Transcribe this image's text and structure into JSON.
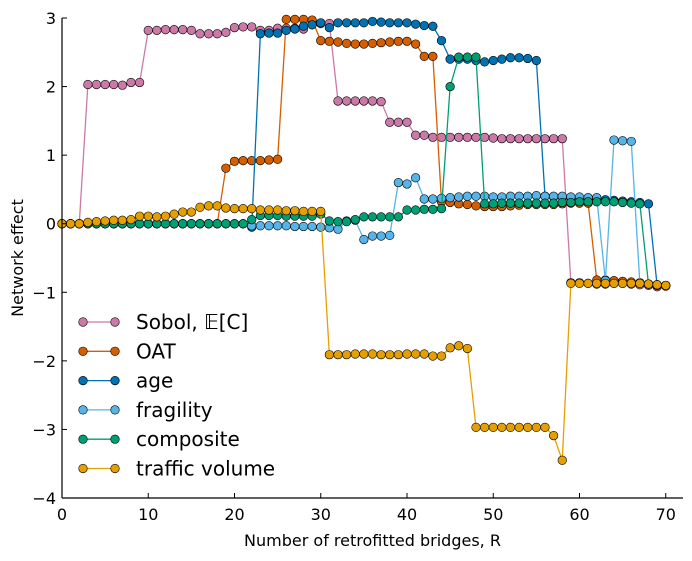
{
  "chart_data": {
    "type": "line",
    "xlabel": "Number of retrofitted bridges, R",
    "ylabel": "Network effect",
    "xlim": [
      0,
      72
    ],
    "ylim": [
      -4,
      3
    ],
    "xticks": [
      0,
      10,
      20,
      30,
      40,
      50,
      60,
      70
    ],
    "yticks": [
      -4,
      -3,
      -2,
      -1,
      0,
      1,
      2,
      3
    ],
    "xtick_labels": [
      "0",
      "10",
      "20",
      "30",
      "40",
      "50",
      "60",
      "70"
    ],
    "ytick_labels": [
      "−4",
      "−3",
      "−2",
      "−1",
      "0",
      "1",
      "2",
      "3"
    ],
    "grid": false,
    "legend_position": "lower-left",
    "series": [
      {
        "name": "Sobol, 𝔼[C]",
        "color": "#cc79a7",
        "x": [
          0,
          1,
          2,
          3,
          4,
          5,
          6,
          7,
          8,
          9,
          10,
          11,
          12,
          13,
          14,
          15,
          16,
          17,
          18,
          19,
          20,
          21,
          22,
          23,
          24,
          25,
          26,
          27,
          28,
          29,
          30,
          31,
          32,
          33,
          34,
          35,
          36,
          37,
          38,
          39,
          40,
          41,
          42,
          43,
          44,
          45,
          46,
          47,
          48,
          49,
          50,
          51,
          52,
          53,
          54,
          55,
          56,
          57,
          58,
          59,
          60,
          61,
          62,
          63,
          64,
          65,
          66,
          67,
          68,
          69,
          70
        ],
        "y": [
          0,
          0,
          0,
          2.03,
          2.03,
          2.03,
          2.03,
          2.02,
          2.06,
          2.06,
          2.82,
          2.82,
          2.83,
          2.83,
          2.83,
          2.82,
          2.77,
          2.77,
          2.77,
          2.79,
          2.86,
          2.87,
          2.87,
          2.82,
          2.82,
          2.85,
          2.85,
          2.85,
          2.84,
          2.93,
          2.92,
          2.92,
          1.79,
          1.79,
          1.79,
          1.79,
          1.79,
          1.78,
          1.48,
          1.48,
          1.48,
          1.29,
          1.29,
          1.26,
          1.26,
          1.26,
          1.26,
          1.26,
          1.26,
          1.26,
          1.25,
          1.24,
          1.24,
          1.24,
          1.24,
          1.24,
          1.24,
          1.24,
          1.24,
          -0.86,
          -0.86,
          -0.87,
          -0.88,
          -0.88,
          -0.87,
          -0.87,
          -0.88,
          -0.89,
          -0.9,
          -0.92,
          -0.91
        ]
      },
      {
        "name": "OAT",
        "color": "#d55e00",
        "x": [
          0,
          1,
          2,
          3,
          4,
          5,
          6,
          7,
          8,
          9,
          10,
          11,
          12,
          13,
          14,
          15,
          16,
          17,
          18,
          19,
          20,
          21,
          22,
          23,
          24,
          25,
          26,
          27,
          28,
          29,
          30,
          31,
          32,
          33,
          34,
          35,
          36,
          37,
          38,
          39,
          40,
          41,
          42,
          43,
          44,
          45,
          46,
          47,
          48,
          49,
          50,
          51,
          52,
          53,
          54,
          55,
          56,
          57,
          58,
          59,
          60,
          61,
          62,
          63,
          64,
          65,
          66,
          67,
          68,
          69,
          70
        ],
        "y": [
          0,
          0,
          0,
          0,
          0,
          0,
          0,
          0,
          0,
          0,
          0,
          0,
          0,
          0,
          0,
          0,
          0,
          0,
          0,
          0.81,
          0.91,
          0.92,
          0.92,
          0.92,
          0.93,
          0.94,
          2.98,
          2.98,
          2.98,
          2.97,
          2.67,
          2.66,
          2.65,
          2.63,
          2.62,
          2.62,
          2.63,
          2.64,
          2.65,
          2.66,
          2.66,
          2.62,
          2.44,
          2.44,
          0.32,
          0.31,
          0.29,
          0.28,
          0.26,
          0.25,
          0.25,
          0.25,
          0.26,
          0.27,
          0.28,
          0.28,
          0.28,
          0.28,
          0.29,
          0.3,
          0.3,
          0.3,
          -0.82,
          -0.82,
          -0.83,
          -0.84,
          -0.85,
          -0.86,
          -0.88,
          -0.9,
          -0.9
        ]
      },
      {
        "name": "age",
        "color": "#0072b2",
        "x": [
          0,
          1,
          2,
          3,
          4,
          5,
          6,
          7,
          8,
          9,
          10,
          11,
          12,
          13,
          14,
          15,
          16,
          17,
          18,
          19,
          20,
          21,
          22,
          23,
          24,
          25,
          26,
          27,
          28,
          29,
          30,
          31,
          32,
          33,
          34,
          35,
          36,
          37,
          38,
          39,
          40,
          41,
          42,
          43,
          44,
          45,
          46,
          47,
          48,
          49,
          50,
          51,
          52,
          53,
          54,
          55,
          56,
          57,
          58,
          59,
          60,
          61,
          62,
          63,
          64,
          65,
          66,
          67,
          68,
          69,
          70
        ],
        "y": [
          0,
          0,
          0,
          0,
          0,
          0,
          0,
          0,
          0,
          0,
          0,
          0,
          0,
          0,
          0,
          0,
          0,
          0,
          0,
          0,
          0,
          0,
          -0.05,
          2.77,
          2.78,
          2.78,
          2.82,
          2.84,
          2.88,
          2.9,
          2.93,
          2.86,
          2.93,
          2.93,
          2.93,
          2.93,
          2.95,
          2.94,
          2.93,
          2.93,
          2.93,
          2.91,
          2.89,
          2.88,
          2.67,
          2.4,
          2.4,
          2.4,
          2.38,
          2.36,
          2.38,
          2.4,
          2.42,
          2.42,
          2.41,
          2.38,
          0.4,
          0.39,
          0.39,
          0.38,
          0.38,
          0.37,
          0.36,
          0.35,
          0.34,
          0.33,
          0.32,
          0.31,
          0.29,
          -0.9,
          -0.9
        ]
      },
      {
        "name": "fragility",
        "color": "#56b4e9",
        "x": [
          0,
          1,
          2,
          3,
          4,
          5,
          6,
          7,
          8,
          9,
          10,
          11,
          12,
          13,
          14,
          15,
          16,
          17,
          18,
          19,
          20,
          21,
          22,
          23,
          24,
          25,
          26,
          27,
          28,
          29,
          30,
          31,
          32,
          33,
          34,
          35,
          36,
          37,
          38,
          39,
          40,
          41,
          42,
          43,
          44,
          45,
          46,
          47,
          48,
          49,
          50,
          51,
          52,
          53,
          54,
          55,
          56,
          57,
          58,
          59,
          60,
          61,
          62,
          63,
          64,
          65,
          66,
          67,
          68,
          69,
          70
        ],
        "y": [
          0,
          0,
          0,
          0,
          0,
          0,
          0,
          0,
          0,
          0,
          0,
          0,
          0,
          0,
          0,
          0,
          0,
          0,
          0,
          0,
          0,
          0,
          -0.03,
          -0.03,
          -0.03,
          -0.03,
          -0.03,
          -0.04,
          -0.04,
          -0.04,
          -0.05,
          -0.06,
          -0.08,
          0.04,
          0.05,
          -0.23,
          -0.18,
          -0.18,
          -0.17,
          0.6,
          0.58,
          0.67,
          0.36,
          0.36,
          0.37,
          0.38,
          0.39,
          0.4,
          0.4,
          0.4,
          0.39,
          0.39,
          0.4,
          0.4,
          0.4,
          0.41,
          0.4,
          0.4,
          0.4,
          0.39,
          0.39,
          0.38,
          0.38,
          -0.83,
          1.22,
          1.21,
          1.2,
          -0.87,
          -0.88,
          -0.89,
          -0.9
        ]
      },
      {
        "name": "composite",
        "color": "#009e73",
        "x": [
          0,
          1,
          2,
          3,
          4,
          5,
          6,
          7,
          8,
          9,
          10,
          11,
          12,
          13,
          14,
          15,
          16,
          17,
          18,
          19,
          20,
          21,
          22,
          23,
          24,
          25,
          26,
          27,
          28,
          29,
          30,
          31,
          32,
          33,
          34,
          35,
          36,
          37,
          38,
          39,
          40,
          41,
          42,
          43,
          44,
          45,
          46,
          47,
          48,
          49,
          50,
          51,
          52,
          53,
          54,
          55,
          56,
          57,
          58,
          59,
          60,
          61,
          62,
          63,
          64,
          65,
          66,
          67,
          68,
          69,
          70
        ],
        "y": [
          0,
          0,
          0,
          0,
          0,
          0,
          0,
          0,
          0,
          0,
          0,
          0,
          0,
          0,
          0,
          0,
          0,
          0,
          0,
          0,
          0,
          0,
          0.06,
          0.12,
          0.12,
          0.12,
          0.11,
          0.11,
          0.11,
          0.11,
          0.14,
          0.04,
          0.03,
          0.03,
          0.06,
          0.1,
          0.1,
          0.1,
          0.1,
          0.1,
          0.2,
          0.2,
          0.21,
          0.21,
          0.22,
          2.0,
          2.43,
          2.43,
          2.43,
          0.29,
          0.29,
          0.3,
          0.3,
          0.3,
          0.3,
          0.3,
          0.3,
          0.3,
          0.31,
          0.31,
          0.32,
          0.32,
          0.32,
          0.32,
          0.32,
          0.31,
          0.3,
          0.29,
          -0.88,
          -0.89,
          -0.9
        ]
      },
      {
        "name": "traffic volume",
        "color": "#e69f00",
        "x": [
          0,
          1,
          2,
          3,
          4,
          5,
          6,
          7,
          8,
          9,
          10,
          11,
          12,
          13,
          14,
          15,
          16,
          17,
          18,
          19,
          20,
          21,
          22,
          23,
          24,
          25,
          26,
          27,
          28,
          29,
          30,
          31,
          32,
          33,
          34,
          35,
          36,
          37,
          38,
          39,
          40,
          41,
          42,
          43,
          44,
          45,
          46,
          47,
          48,
          49,
          50,
          51,
          52,
          53,
          54,
          55,
          56,
          57,
          58,
          59,
          60,
          61,
          62,
          63,
          64,
          65,
          66,
          67,
          68,
          69,
          70
        ],
        "y": [
          0,
          0,
          0,
          0.02,
          0.03,
          0.04,
          0.05,
          0.05,
          0.06,
          0.11,
          0.11,
          0.1,
          0.11,
          0.14,
          0.17,
          0.17,
          0.24,
          0.26,
          0.26,
          0.23,
          0.22,
          0.22,
          0.22,
          0.2,
          0.2,
          0.2,
          0.19,
          0.19,
          0.18,
          0.18,
          0.18,
          -1.91,
          -1.91,
          -1.91,
          -1.9,
          -1.9,
          -1.9,
          -1.91,
          -1.91,
          -1.91,
          -1.9,
          -1.9,
          -1.9,
          -1.93,
          -1.93,
          -1.81,
          -1.78,
          -1.82,
          -2.97,
          -2.97,
          -2.97,
          -2.97,
          -2.97,
          -2.97,
          -2.97,
          -2.97,
          -2.97,
          -3.09,
          -3.45,
          -0.87,
          -0.87,
          -0.87,
          -0.87,
          -0.87,
          -0.87,
          -0.87,
          -0.87,
          -0.87,
          -0.88,
          -0.89,
          -0.9
        ]
      }
    ]
  }
}
